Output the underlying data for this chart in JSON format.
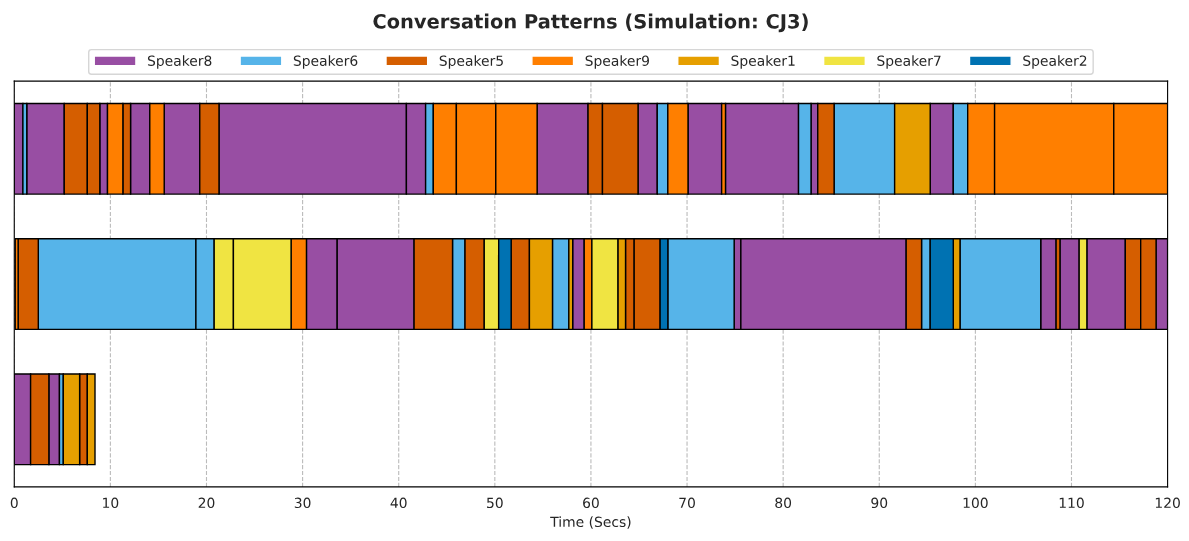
{
  "chart_data": {
    "type": "bar",
    "orientation": "horizontal",
    "title": "Conversation Patterns (Simulation: CJ3)",
    "xlabel": "Time (Secs)",
    "categories": [
      null,
      null,
      null
    ],
    "tick_labels": "x",
    "xlim": [
      0,
      120
    ],
    "xticks": [
      0,
      10,
      20,
      30,
      40,
      50,
      60,
      70,
      80,
      90,
      100,
      110,
      120
    ],
    "grid": "x",
    "legend": "top",
    "series": [
      {
        "name": "Speaker8",
        "color": "#984ea3",
        "values": [
          0.9,
          3.2,
          1.7
        ],
        "base": [
          0,
          30.4,
          0
        ]
      },
      {
        "color": "#984ea3",
        "values": [
          3.9,
          8.0,
          1.1
        ],
        "base": [
          1.3,
          33.6,
          3.6
        ]
      },
      {
        "color": "#984ea3",
        "values": [
          0.8,
          1.2,
          null
        ],
        "base": [
          8.9,
          58.1,
          null
        ]
      },
      {
        "color": "#984ea3",
        "values": [
          2.0,
          0.7,
          null
        ],
        "base": [
          12.1,
          74.9,
          null
        ]
      },
      {
        "color": "#984ea3",
        "values": [
          3.7,
          17.2,
          null
        ],
        "base": [
          15.6,
          75.6,
          null
        ]
      },
      {
        "color": "#984ea3",
        "values": [
          19.5,
          1.6,
          null
        ],
        "base": [
          21.3,
          106.8,
          null
        ]
      },
      {
        "color": "#984ea3",
        "values": [
          2.0,
          2.0,
          null
        ],
        "base": [
          40.8,
          108.8,
          null
        ]
      },
      {
        "color": "#984ea3",
        "values": [
          5.3,
          4.0,
          null
        ],
        "base": [
          54.4,
          111.6,
          null
        ]
      },
      {
        "color": "#984ea3",
        "values": [
          2.0,
          1.2,
          null
        ],
        "base": [
          64.9,
          118.8,
          null
        ]
      },
      {
        "color": "#984ea3",
        "values": [
          3.5,
          null,
          null
        ],
        "base": [
          70.1,
          null,
          null
        ]
      },
      {
        "color": "#984ea3",
        "values": [
          7.6,
          null,
          null
        ],
        "base": [
          74.0,
          null,
          null
        ]
      },
      {
        "color": "#984ea3",
        "values": [
          0.7,
          null,
          null
        ],
        "base": [
          82.9,
          null,
          null
        ]
      },
      {
        "color": "#984ea3",
        "values": [
          2.4,
          null,
          null
        ],
        "base": [
          95.3,
          null,
          null
        ]
      },
      {
        "name": "Speaker6",
        "color": "#56b4e9",
        "values": [
          0.4,
          16.4,
          0.4
        ],
        "base": [
          0.9,
          2.5,
          4.7
        ]
      },
      {
        "color": "#56b4e9",
        "values": [
          0.8,
          1.9,
          null
        ],
        "base": [
          42.8,
          18.9,
          null
        ]
      },
      {
        "color": "#56b4e9",
        "values": [
          1.1,
          1.3,
          null
        ],
        "base": [
          66.9,
          45.6,
          null
        ]
      },
      {
        "color": "#56b4e9",
        "values": [
          1.3,
          1.7,
          null
        ],
        "base": [
          81.6,
          56.0,
          null
        ]
      },
      {
        "color": "#56b4e9",
        "values": [
          6.3,
          6.9,
          null
        ],
        "base": [
          85.3,
          68.0,
          null
        ]
      },
      {
        "color": "#56b4e9",
        "values": [
          1.5,
          0.9,
          null
        ],
        "base": [
          97.7,
          94.4,
          null
        ]
      },
      {
        "color": "#56b4e9",
        "values": [
          null,
          8.4,
          null
        ],
        "base": [
          null,
          98.4,
          null
        ]
      },
      {
        "name": "Speaker5",
        "color": "#d55e00",
        "values": [
          2.4,
          2.1,
          1.9
        ],
        "base": [
          5.2,
          0.4,
          1.7
        ]
      },
      {
        "color": "#d55e00",
        "values": [
          1.3,
          4.0,
          0.8
        ],
        "base": [
          7.6,
          41.6,
          6.8
        ]
      },
      {
        "color": "#d55e00",
        "values": [
          0.8,
          2.0,
          null
        ],
        "base": [
          11.3,
          46.9,
          null
        ]
      },
      {
        "color": "#d55e00",
        "values": [
          2.0,
          1.9,
          null
        ],
        "base": [
          19.3,
          51.7,
          null
        ]
      },
      {
        "color": "#d55e00",
        "values": [
          1.5,
          0.9,
          null
        ],
        "base": [
          59.7,
          63.6,
          null
        ]
      },
      {
        "color": "#d55e00",
        "values": [
          3.7,
          2.7,
          null
        ],
        "base": [
          61.2,
          64.5,
          null
        ]
      },
      {
        "color": "#d55e00",
        "values": [
          1.7,
          1.6,
          null
        ],
        "base": [
          83.6,
          92.8,
          null
        ]
      },
      {
        "color": "#d55e00",
        "values": [
          null,
          0.4,
          null
        ],
        "base": [
          null,
          108.4,
          null
        ]
      },
      {
        "color": "#d55e00",
        "values": [
          null,
          1.6,
          null
        ],
        "base": [
          null,
          115.6,
          null
        ]
      },
      {
        "color": "#d55e00",
        "values": [
          null,
          1.6,
          null
        ],
        "base": [
          null,
          117.2,
          null
        ]
      },
      {
        "name": "Speaker9",
        "color": "#ff7f00",
        "values": [
          1.6,
          0.3,
          null
        ],
        "base": [
          9.7,
          0.1,
          null
        ]
      },
      {
        "color": "#ff7f00",
        "values": [
          1.5,
          1.6,
          null
        ],
        "base": [
          14.1,
          28.8,
          null
        ]
      },
      {
        "color": "#ff7f00",
        "values": [
          2.4,
          0.8,
          null
        ],
        "base": [
          43.6,
          59.3,
          null
        ]
      },
      {
        "color": "#ff7f00",
        "values": [
          4.1,
          null,
          null
        ],
        "base": [
          46.0,
          null,
          null
        ]
      },
      {
        "color": "#ff7f00",
        "values": [
          4.3,
          null,
          null
        ],
        "base": [
          50.1,
          null,
          null
        ]
      },
      {
        "color": "#ff7f00",
        "values": [
          2.1,
          null,
          null
        ],
        "base": [
          68.0,
          null,
          null
        ]
      },
      {
        "color": "#ff7f00",
        "values": [
          0.4,
          null,
          null
        ],
        "base": [
          73.6,
          null,
          null
        ]
      },
      {
        "color": "#ff7f00",
        "values": [
          2.8,
          null,
          null
        ],
        "base": [
          99.2,
          null,
          null
        ]
      },
      {
        "color": "#ff7f00",
        "values": [
          12.4,
          null,
          null
        ],
        "base": [
          102.0,
          null,
          null
        ]
      },
      {
        "color": "#ff7f00",
        "values": [
          5.6,
          null,
          null
        ],
        "base": [
          114.4,
          null,
          null
        ]
      },
      {
        "name": "Speaker1",
        "color": "#e69f00",
        "values": [
          3.7,
          2.4,
          1.7
        ],
        "base": [
          91.6,
          53.6,
          5.1
        ]
      },
      {
        "color": "#e69f00",
        "values": [
          null,
          0.4,
          0.8
        ],
        "base": [
          null,
          57.7,
          7.6
        ]
      },
      {
        "color": "#e69f00",
        "values": [
          null,
          0.8,
          null
        ],
        "base": [
          null,
          62.8,
          null
        ]
      },
      {
        "color": "#e69f00",
        "values": [
          null,
          0.7,
          null
        ],
        "base": [
          null,
          97.7,
          null
        ]
      },
      {
        "name": "Speaker7",
        "color": "#f0e442",
        "values": [
          null,
          2.0,
          null
        ],
        "base": [
          null,
          20.8,
          null
        ]
      },
      {
        "color": "#f0e442",
        "values": [
          null,
          6.0,
          null
        ],
        "base": [
          null,
          22.8,
          null
        ]
      },
      {
        "color": "#f0e442",
        "values": [
          null,
          1.5,
          null
        ],
        "base": [
          null,
          48.9,
          null
        ]
      },
      {
        "color": "#f0e442",
        "values": [
          null,
          2.7,
          null
        ],
        "base": [
          null,
          60.1,
          null
        ]
      },
      {
        "color": "#f0e442",
        "values": [
          null,
          0.8,
          null
        ],
        "base": [
          null,
          110.8,
          null
        ]
      },
      {
        "name": "Speaker2",
        "color": "#0072b2",
        "values": [
          null,
          1.3,
          null
        ],
        "base": [
          null,
          50.4,
          null
        ]
      },
      {
        "color": "#0072b2",
        "values": [
          null,
          0.8,
          null
        ],
        "base": [
          null,
          67.2,
          null
        ]
      },
      {
        "color": "#0072b2",
        "values": [
          null,
          2.4,
          null
        ],
        "base": [
          null,
          95.3,
          null
        ]
      }
    ]
  }
}
